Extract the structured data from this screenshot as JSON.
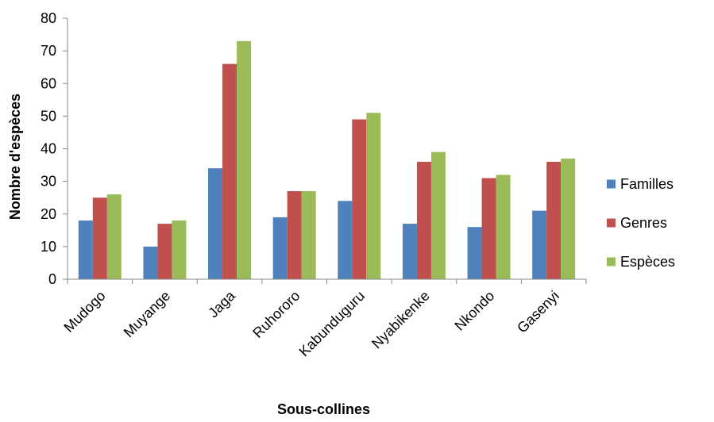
{
  "chart_data": {
    "type": "bar",
    "xlabel": "Sous-collines",
    "ylabel": "Nombre d'espèces",
    "ylim": [
      0,
      80
    ],
    "yticks": [
      0,
      10,
      20,
      30,
      40,
      50,
      60,
      70,
      80
    ],
    "grid": false,
    "legend_position": "right",
    "categories": [
      "Mudogo",
      "Muyange",
      "Jaga",
      "Ruhororo",
      "Kabunduguru",
      "Nyabikenke",
      "Nkondo",
      "Gasenyi"
    ],
    "series": [
      {
        "name": "Familles",
        "color": "#4F81BD",
        "values": [
          18,
          10,
          34,
          19,
          24,
          17,
          16,
          21
        ]
      },
      {
        "name": "Genres",
        "color": "#C0504D",
        "values": [
          25,
          17,
          66,
          27,
          49,
          36,
          31,
          36
        ]
      },
      {
        "name": "Espèces",
        "color": "#9BBB59",
        "values": [
          26,
          18,
          73,
          27,
          51,
          39,
          32,
          37
        ]
      }
    ]
  }
}
